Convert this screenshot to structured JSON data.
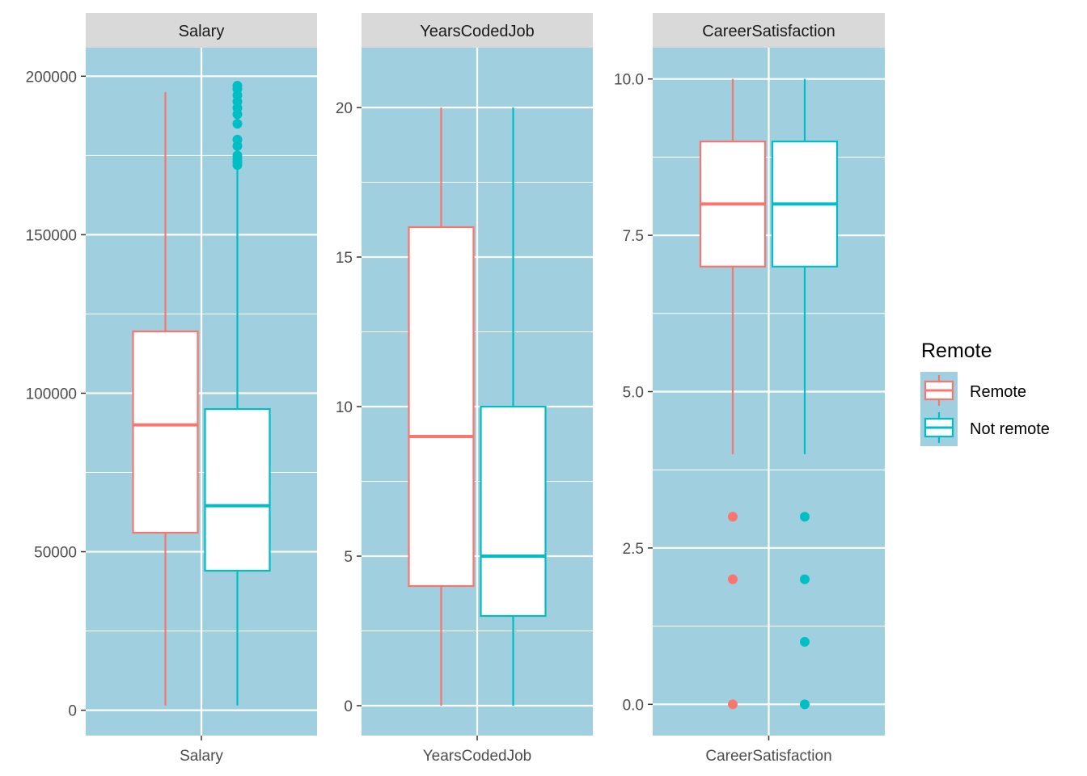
{
  "chart_data": {
    "type": "boxplot",
    "facets": [
      {
        "strip": "Salary",
        "x_tick": "Salary",
        "ylim": [
          -8000,
          209000
        ],
        "y_ticks": [
          0,
          50000,
          100000,
          150000,
          200000
        ],
        "y_tick_labels": [
          "0",
          "50000",
          "100000",
          "150000",
          "200000"
        ],
        "y_minor": [
          25000,
          75000,
          125000,
          175000
        ],
        "boxes": [
          {
            "group": "Remote",
            "whisker_low": 1500,
            "q1": 56000,
            "median": 90000,
            "q3": 119500,
            "whisker_high": 195000,
            "outliers": []
          },
          {
            "group": "Not remote",
            "whisker_low": 1500,
            "q1": 44000,
            "median": 64500,
            "q3": 95000,
            "whisker_high": 171000,
            "outliers": [
              172000,
              173000,
              174000,
              175000,
              178000,
              180000,
              185000,
              188000,
              190000,
              192000,
              194000,
              196000,
              197000
            ]
          }
        ]
      },
      {
        "strip": "YearsCodedJob",
        "x_tick": "YearsCodedJob",
        "ylim": [
          -1,
          22
        ],
        "y_ticks": [
          0,
          5,
          10,
          15,
          20
        ],
        "y_tick_labels": [
          "0",
          "5",
          "10",
          "15",
          "20"
        ],
        "y_minor": [
          2.5,
          7.5,
          12.5,
          17.5
        ],
        "boxes": [
          {
            "group": "Remote",
            "whisker_low": 0,
            "q1": 4,
            "median": 9,
            "q3": 16,
            "whisker_high": 20,
            "outliers": []
          },
          {
            "group": "Not remote",
            "whisker_low": 0,
            "q1": 3,
            "median": 5,
            "q3": 10,
            "whisker_high": 20,
            "outliers": []
          }
        ]
      },
      {
        "strip": "CareerSatisfaction",
        "x_tick": "CareerSatisfaction",
        "ylim": [
          -0.5,
          10.5
        ],
        "y_ticks": [
          0,
          2.5,
          5,
          7.5,
          10
        ],
        "y_tick_labels": [
          "0.0",
          "2.5",
          "5.0",
          "7.5",
          "10.0"
        ],
        "y_minor": [
          1.25,
          3.75,
          6.25,
          8.75
        ],
        "boxes": [
          {
            "group": "Remote",
            "whisker_low": 4,
            "q1": 7,
            "median": 8,
            "q3": 9,
            "whisker_high": 10,
            "outliers": [
              0,
              2,
              3
            ]
          },
          {
            "group": "Not remote",
            "whisker_low": 4,
            "q1": 7,
            "median": 8,
            "q3": 9,
            "whisker_high": 10,
            "outliers": [
              0,
              1,
              2,
              3
            ]
          }
        ]
      }
    ],
    "legend": {
      "title": "Remote",
      "entries": [
        {
          "label": "Remote",
          "color": "#F8766D"
        },
        {
          "label": "Not remote",
          "color": "#00BFC4"
        }
      ],
      "position": "right"
    },
    "colors": {
      "panel_bg": "#A0CFE0",
      "strip_bg": "#D9D9D9",
      "grid": "#FFFFFF",
      "box_fill": "#FFFFFF",
      "text": "#4D4D4D"
    }
  }
}
